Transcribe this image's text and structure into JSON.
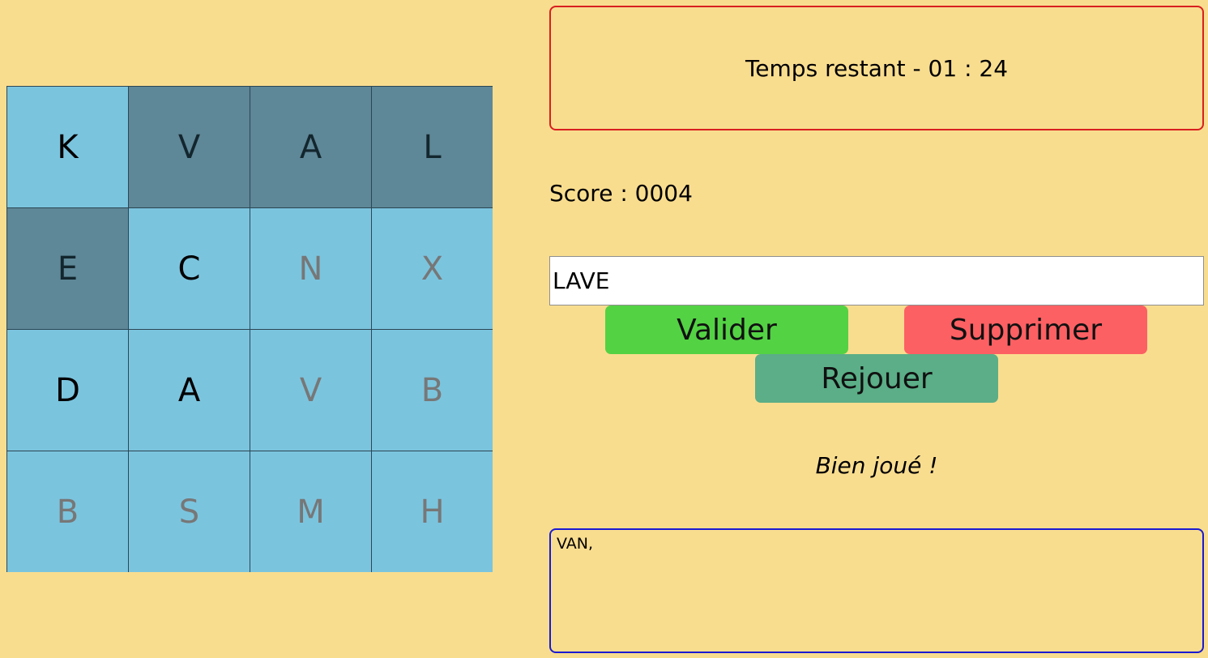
{
  "grid": [
    {
      "letter": "K",
      "state": "available"
    },
    {
      "letter": "V",
      "state": "selected"
    },
    {
      "letter": "A",
      "state": "selected"
    },
    {
      "letter": "L",
      "state": "selected"
    },
    {
      "letter": "E",
      "state": "selected"
    },
    {
      "letter": "C",
      "state": "available"
    },
    {
      "letter": "N",
      "state": "disabled"
    },
    {
      "letter": "X",
      "state": "disabled"
    },
    {
      "letter": "D",
      "state": "available"
    },
    {
      "letter": "A",
      "state": "available"
    },
    {
      "letter": "V",
      "state": "disabled"
    },
    {
      "letter": "B",
      "state": "disabled"
    },
    {
      "letter": "B",
      "state": "disabled"
    },
    {
      "letter": "S",
      "state": "disabled"
    },
    {
      "letter": "M",
      "state": "disabled"
    },
    {
      "letter": "H",
      "state": "disabled"
    }
  ],
  "timer": {
    "text": "Temps restant - 01 : 24"
  },
  "score": {
    "text": "Score : 0004"
  },
  "input": {
    "value": "LAVE"
  },
  "buttons": {
    "validate": "Valider",
    "delete": "Supprimer",
    "replay": "Rejouer"
  },
  "message": "Bien joué !",
  "found_words": "VAN,",
  "colors": {
    "background": "#f9dd8f",
    "cell": "#7bc4de",
    "cell_selected": "#5e8797",
    "timer_border": "#d81f1f",
    "found_border": "#1a1ad2",
    "validate": "#53d244",
    "delete": "#fc6063",
    "replay": "#5bae87"
  }
}
